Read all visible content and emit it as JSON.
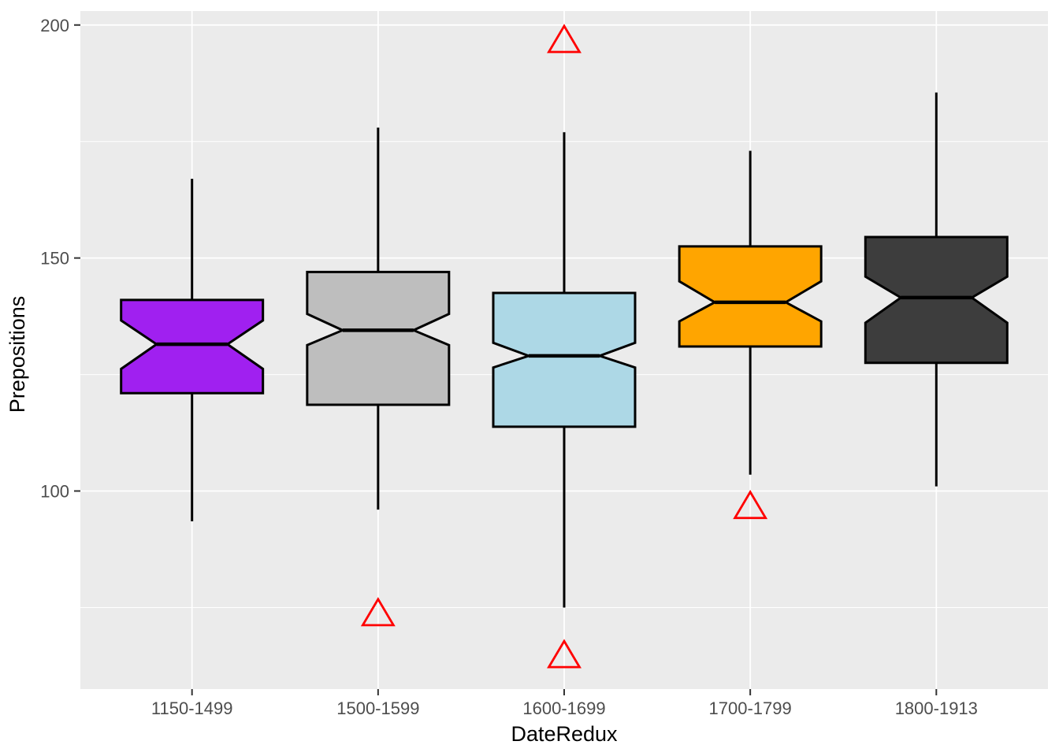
{
  "chart_data": {
    "type": "boxplot",
    "title": "",
    "xlabel": "DateRedux",
    "ylabel": "Prepositions",
    "categories": [
      "1150-1499",
      "1500-1599",
      "1600-1699",
      "1700-1799",
      "1800-1913"
    ],
    "y_axis": {
      "ticks": [
        200,
        150,
        100
      ],
      "tick_labels": [
        "200",
        "150",
        "100"
      ],
      "minor_ticks": [
        175,
        125,
        75
      ],
      "range": [
        57.5,
        203
      ],
      "grid": true,
      "grid_major_color": "#FFFFFF",
      "grid_minor_color": "#FFFFFF"
    },
    "x_axis": {
      "grid_major_color": "#FFFFFF"
    },
    "boxes": [
      {
        "category": "1150-1499",
        "fill": "#A020F0",
        "whisker_low": 93.5,
        "q1": 121,
        "median": 131.5,
        "q3": 141,
        "whisker_high": 167,
        "notch_low": 126.2,
        "notch_high": 136.6,
        "outliers": []
      },
      {
        "category": "1500-1599",
        "fill": "#BEBEBE",
        "whisker_low": 96,
        "q1": 118.5,
        "median": 134.5,
        "q3": 147,
        "whisker_high": 178,
        "notch_low": 131.3,
        "notch_high": 138,
        "outliers": [
          74
        ]
      },
      {
        "category": "1600-1699",
        "fill": "#ADD8E6",
        "whisker_low": 75,
        "q1": 113.8,
        "median": 129,
        "q3": 142.5,
        "whisker_high": 177,
        "notch_low": 126.5,
        "notch_high": 131.8,
        "outliers": [
          197,
          65
        ]
      },
      {
        "category": "1700-1799",
        "fill": "#FFA500",
        "whisker_low": 103.5,
        "q1": 131,
        "median": 140.5,
        "q3": 152.5,
        "whisker_high": 173,
        "notch_low": 136.4,
        "notch_high": 145,
        "outliers": [
          97
        ]
      },
      {
        "category": "1800-1913",
        "fill": "#3D3D3D",
        "whisker_low": 101,
        "q1": 127.5,
        "median": 141.5,
        "q3": 154.5,
        "whisker_high": 185.5,
        "notch_low": 136.1,
        "notch_high": 146,
        "outliers": []
      }
    ],
    "box_style": {
      "border_color": "#000000",
      "median_color": "#000000",
      "notch_width_ratio": 0.5
    },
    "outlier_marker": {
      "shape": "triangle-open",
      "color": "#FF0000"
    },
    "panel_bg": "#EBEBEB",
    "tick_mark_color": "#333333",
    "tick_label_color": "#4D4D4D",
    "axis_title_color": "#000000",
    "legend": "none"
  }
}
